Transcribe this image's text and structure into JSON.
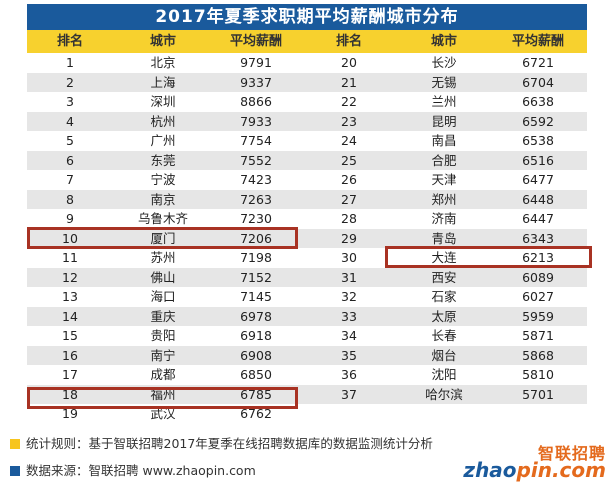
{
  "title": "2017年夏季求职期平均薪酬城市分布",
  "columns": [
    "排名",
    "城市",
    "平均薪酬",
    "排名",
    "城市",
    "平均薪酬"
  ],
  "rows": [
    [
      "1",
      "北京",
      "9791",
      "20",
      "长沙",
      "6721"
    ],
    [
      "2",
      "上海",
      "9337",
      "21",
      "无锡",
      "6704"
    ],
    [
      "3",
      "深圳",
      "8866",
      "22",
      "兰州",
      "6638"
    ],
    [
      "4",
      "杭州",
      "7933",
      "23",
      "昆明",
      "6592"
    ],
    [
      "5",
      "广州",
      "7754",
      "24",
      "南昌",
      "6538"
    ],
    [
      "6",
      "东莞",
      "7552",
      "25",
      "合肥",
      "6516"
    ],
    [
      "7",
      "宁波",
      "7423",
      "26",
      "天津",
      "6477"
    ],
    [
      "8",
      "南京",
      "7263",
      "27",
      "郑州",
      "6448"
    ],
    [
      "9",
      "乌鲁木齐",
      "7230",
      "28",
      "济南",
      "6447"
    ],
    [
      "10",
      "厦门",
      "7206",
      "29",
      "青岛",
      "6343"
    ],
    [
      "11",
      "苏州",
      "7198",
      "30",
      "大连",
      "6213"
    ],
    [
      "12",
      "佛山",
      "7152",
      "31",
      "西安",
      "6089"
    ],
    [
      "13",
      "海口",
      "7145",
      "32",
      "石家",
      "6027"
    ],
    [
      "14",
      "重庆",
      "6978",
      "33",
      "太原",
      "5959"
    ],
    [
      "15",
      "贵阳",
      "6918",
      "34",
      "长春",
      "5871"
    ],
    [
      "16",
      "南宁",
      "6908",
      "35",
      "烟台",
      "5868"
    ],
    [
      "17",
      "成都",
      "6850",
      "36",
      "沈阳",
      "5810"
    ],
    [
      "18",
      "福州",
      "6785",
      "37",
      "哈尔滨",
      "5701"
    ],
    [
      "19",
      "武汉",
      "6762",
      "",
      "",
      ""
    ]
  ],
  "highlighted": [
    "厦门",
    "福州",
    "大连"
  ],
  "footnotes": {
    "rule": "统计规则：基于智联招聘2017年夏季在线招聘数据库的数据监测统计分析",
    "source": "数据来源：智联招聘 www.zhaopin.com"
  },
  "logo": {
    "cn": "智联招聘",
    "en_left": "zhao",
    "en_right": "pin.com"
  },
  "colors": {
    "title_bg": "#1a5a9c",
    "header_bg": "#f7d12e",
    "row_alt": "#e6e6e6",
    "highlight_border": "#a83223",
    "rule_marker": "#f7c51e",
    "source_marker": "#1a5a9c",
    "logo_orange": "#e46a1d"
  }
}
